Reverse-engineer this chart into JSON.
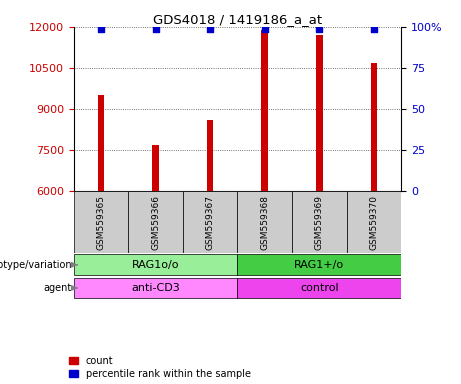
{
  "title": "GDS4018 / 1419186_a_at",
  "samples": [
    "GSM559365",
    "GSM559366",
    "GSM559367",
    "GSM559368",
    "GSM559369",
    "GSM559370"
  ],
  "counts": [
    9500,
    7700,
    8600,
    11900,
    11700,
    10700
  ],
  "ylim_left": [
    6000,
    12000
  ],
  "ylim_right": [
    0,
    100
  ],
  "yticks_left": [
    6000,
    7500,
    9000,
    10500,
    12000
  ],
  "yticks_right": [
    0,
    25,
    50,
    75,
    100
  ],
  "bar_color": "#cc0000",
  "percentile_color": "#0000cc",
  "bar_width": 0.12,
  "genotype_groups": [
    {
      "label": "RAG1o/o",
      "samples": [
        0,
        1,
        2
      ],
      "color": "#99ee99"
    },
    {
      "label": "RAG1+/o",
      "samples": [
        3,
        4,
        5
      ],
      "color": "#44cc44"
    }
  ],
  "agent_groups": [
    {
      "label": "anti-CD3",
      "samples": [
        0,
        1,
        2
      ],
      "color": "#ff88ff"
    },
    {
      "label": "control",
      "samples": [
        3,
        4,
        5
      ],
      "color": "#ee44ee"
    }
  ],
  "legend_count_label": "count",
  "legend_percentile_label": "percentile rank within the sample",
  "label_genotype": "genotype/variation",
  "label_agent": "agent",
  "tick_label_color_left": "#cc0000",
  "tick_label_color_right": "#0000cc",
  "sample_box_color": "#cccccc",
  "dotted_grid_color": "#444444",
  "xlim": [
    -0.5,
    5.5
  ]
}
